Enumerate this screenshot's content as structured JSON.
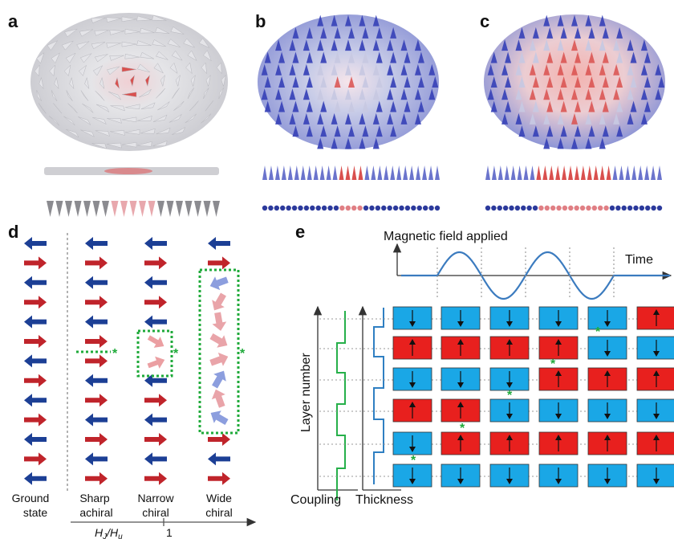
{
  "panels": {
    "a": {
      "letter": "a"
    },
    "b": {
      "letter": "b"
    },
    "c": {
      "letter": "c"
    },
    "d": {
      "letter": "d",
      "columns": [
        {
          "label_line1": "Ground",
          "label_line2": "state"
        },
        {
          "label_line1": "Sharp",
          "label_line2": "achiral"
        },
        {
          "label_line1": "Narrow",
          "label_line2": "chiral"
        },
        {
          "label_line1": "Wide",
          "label_line2": "chiral"
        }
      ],
      "axis_label": "H",
      "axis_label_sub1": "J",
      "axis_label_sep": "/",
      "axis_label_sub_base": "H",
      "axis_label_sub2": "u",
      "axis_tick": "1",
      "star": "*"
    },
    "e": {
      "letter": "e",
      "title": "Magnetic field applied",
      "time_label": "Time",
      "ylabel": "Layer number",
      "coupling_label": "Coupling",
      "thickness_label": "Thickness",
      "star": "*",
      "colors": {
        "up": "#e8201e",
        "down": "#1aa7e6"
      },
      "grid": [
        [
          "down",
          "down",
          "down",
          "down",
          "down",
          "up"
        ],
        [
          "up",
          "up",
          "up",
          "up",
          "down",
          "down"
        ],
        [
          "down",
          "down",
          "down",
          "up",
          "up",
          "up"
        ],
        [
          "up",
          "up",
          "down",
          "down",
          "down",
          "down"
        ],
        [
          "down",
          "up",
          "up",
          "up",
          "up",
          "up"
        ],
        [
          "down",
          "down",
          "down",
          "down",
          "down",
          "down"
        ]
      ]
    }
  },
  "colors": {
    "red_arrow": "#c0242b",
    "blue_arrow": "#1c3f95",
    "cone_blue": "#3b46b8",
    "cone_red": "#d9504e",
    "green_dots": "#1faa3a",
    "wave": "#3b7bbf"
  }
}
